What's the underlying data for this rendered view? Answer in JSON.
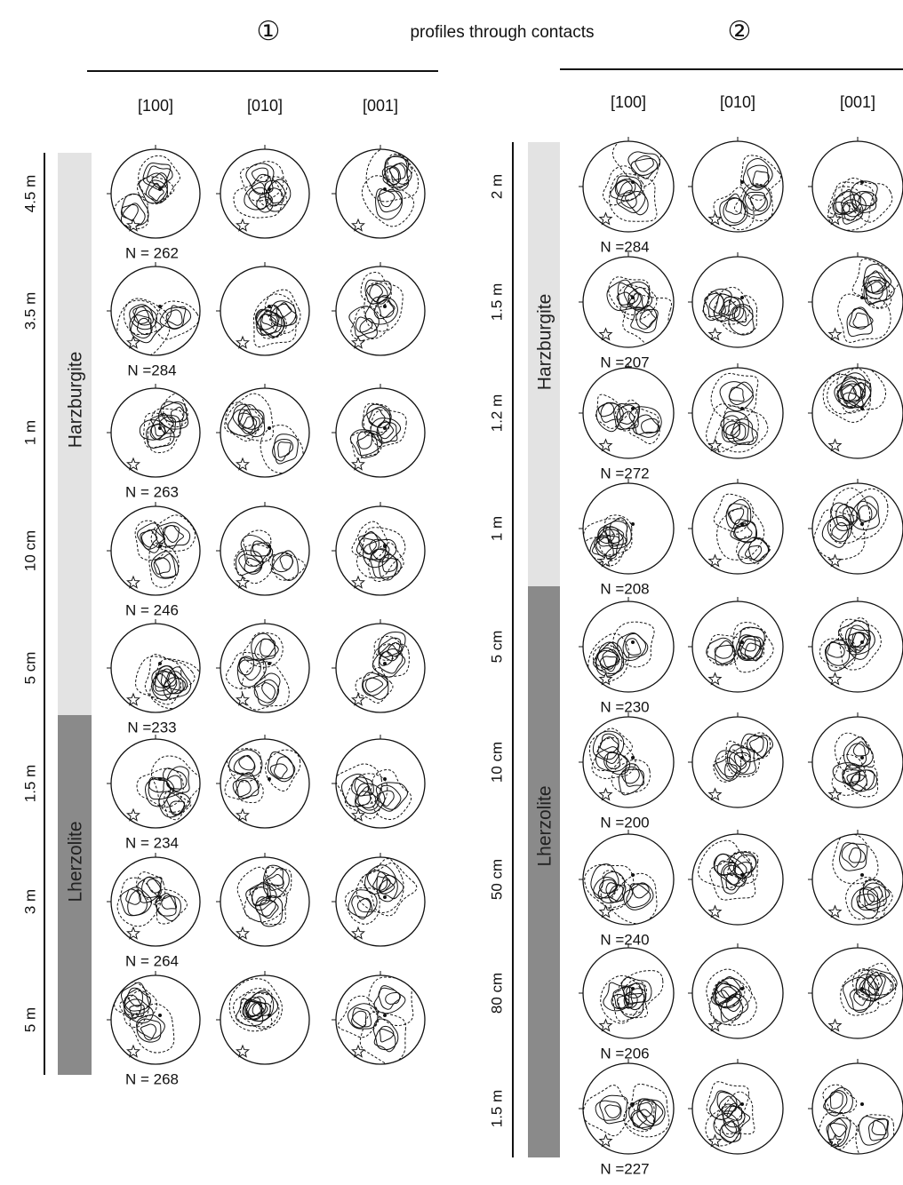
{
  "header": {
    "title": "profiles through contacts",
    "profile_marks": [
      "①",
      "②"
    ]
  },
  "profiles": [
    {
      "columns": [
        "[100]",
        "[010]",
        "[001]"
      ],
      "rock_types": [
        "Harzburgite",
        "Lherzolite"
      ],
      "rows": [
        {
          "distance": "4.5 m",
          "n": "N = 262"
        },
        {
          "distance": "3.5 m",
          "n": "N =284"
        },
        {
          "distance": "1 m",
          "n": "N = 263"
        },
        {
          "distance": "10 cm",
          "n": "N = 246"
        },
        {
          "distance": "5 cm",
          "n": "N =233"
        },
        {
          "distance": "1.5 m",
          "n": "N = 234"
        },
        {
          "distance": "3 m",
          "n": "N = 264"
        },
        {
          "distance": "5 m",
          "n": "N = 268"
        }
      ]
    },
    {
      "columns": [
        "[100]",
        "[010]",
        "[001]"
      ],
      "rock_types": [
        "Harzburgite",
        "Lherzolite"
      ],
      "rows": [
        {
          "distance": "2 m",
          "n": "N =284"
        },
        {
          "distance": "1.5 m",
          "n": "N =207"
        },
        {
          "distance": "1.2 m",
          "n": "N =272"
        },
        {
          "distance": "1 m",
          "n": "N =208"
        },
        {
          "distance": "5 cm",
          "n": "N =230"
        },
        {
          "distance": "10 cm",
          "n": "N =200"
        },
        {
          "distance": "50 cm",
          "n": "N =240"
        },
        {
          "distance": "80 cm",
          "n": "N =206"
        },
        {
          "distance": "1.5 m",
          "n": "N =227"
        }
      ]
    }
  ]
}
